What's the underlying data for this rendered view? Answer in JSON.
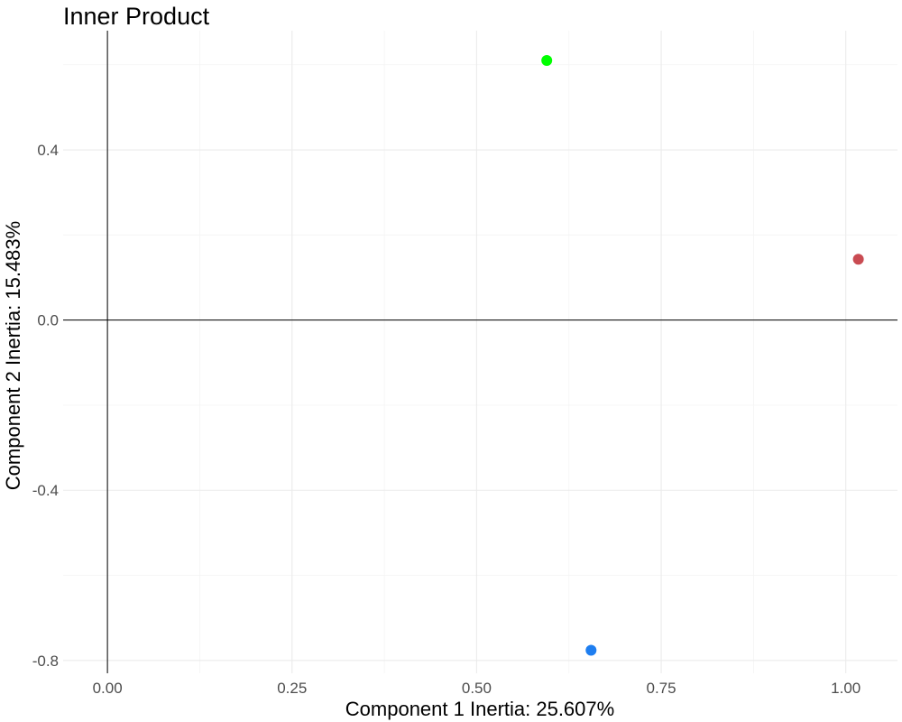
{
  "chart_data": {
    "type": "scatter",
    "title": "Inner Product",
    "xlabel": "Component 1 Inertia: 25.607%",
    "ylabel": "Component 2 Inertia: 15.483%",
    "xlim": [
      -0.06,
      1.07
    ],
    "ylim": [
      -0.83,
      0.68
    ],
    "x_ticks": [
      0.0,
      0.25,
      0.5,
      0.75,
      1.0
    ],
    "x_tick_labels": [
      "0.00",
      "0.25",
      "0.50",
      "0.75",
      "1.00"
    ],
    "y_ticks": [
      -0.8,
      -0.4,
      0.0,
      0.4
    ],
    "y_tick_labels": [
      "-0.8",
      "-0.4",
      "0.0",
      "0.4"
    ],
    "x_minor_ticks": [
      0.125,
      0.375,
      0.625,
      0.875
    ],
    "y_minor_ticks": [
      -0.6,
      -0.2,
      0.2,
      0.6
    ],
    "grid": true,
    "reference_lines": {
      "x": 0,
      "y": 0
    },
    "points": [
      {
        "x": 0.595,
        "y": 0.61,
        "color": "#00ff00"
      },
      {
        "x": 1.017,
        "y": 0.143,
        "color": "#c94b52"
      },
      {
        "x": 0.655,
        "y": -0.776,
        "color": "#1e7ef0"
      }
    ]
  }
}
